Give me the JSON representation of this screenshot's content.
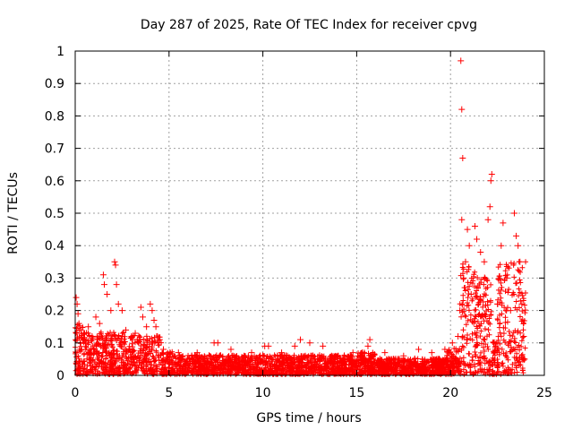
{
  "chart_data": {
    "type": "scatter",
    "title": "Day 287 of 2025, Rate Of TEC Index for receiver cpvg",
    "xlabel": "GPS time / hours",
    "ylabel": "ROTI / TECUs",
    "xlim": [
      0,
      25
    ],
    "ylim": [
      0,
      1
    ],
    "x_ticks": [
      "0",
      "5",
      "10",
      "15",
      "20",
      "25"
    ],
    "y_ticks": [
      "0",
      "0.1",
      "0.2",
      "0.3",
      "0.4",
      "0.5",
      "0.6",
      "0.7",
      "0.8",
      "0.9",
      "1"
    ],
    "grid": true,
    "marker": "plus",
    "color": "#ff0000",
    "series": [
      {
        "name": "ROTI",
        "points": [
          [
            0.05,
            0.24
          ],
          [
            0.1,
            0.22
          ],
          [
            0.15,
            0.19
          ],
          [
            0.2,
            0.16
          ],
          [
            0.3,
            0.14
          ],
          [
            0.5,
            0.13
          ],
          [
            0.7,
            0.15
          ],
          [
            0.9,
            0.12
          ],
          [
            1.1,
            0.18
          ],
          [
            1.3,
            0.16
          ],
          [
            1.5,
            0.31
          ],
          [
            1.55,
            0.28
          ],
          [
            1.7,
            0.25
          ],
          [
            1.9,
            0.2
          ],
          [
            2.1,
            0.35
          ],
          [
            2.15,
            0.34
          ],
          [
            2.2,
            0.28
          ],
          [
            2.3,
            0.22
          ],
          [
            2.5,
            0.2
          ],
          [
            2.7,
            0.14
          ],
          [
            3.0,
            0.12
          ],
          [
            3.2,
            0.13
          ],
          [
            3.5,
            0.21
          ],
          [
            3.6,
            0.18
          ],
          [
            3.8,
            0.15
          ],
          [
            4.0,
            0.22
          ],
          [
            4.1,
            0.2
          ],
          [
            4.2,
            0.17
          ],
          [
            4.3,
            0.15
          ],
          [
            4.5,
            0.11
          ],
          [
            4.7,
            0.08
          ],
          [
            5.5,
            0.07
          ],
          [
            6.5,
            0.07
          ],
          [
            7.4,
            0.1
          ],
          [
            7.6,
            0.1
          ],
          [
            8.3,
            0.08
          ],
          [
            9.0,
            0.06
          ],
          [
            9.4,
            0.07
          ],
          [
            10.1,
            0.09
          ],
          [
            10.3,
            0.09
          ],
          [
            11.0,
            0.07
          ],
          [
            11.7,
            0.09
          ],
          [
            12.0,
            0.11
          ],
          [
            12.5,
            0.1
          ],
          [
            13.2,
            0.09
          ],
          [
            14.0,
            0.06
          ],
          [
            14.8,
            0.07
          ],
          [
            15.6,
            0.09
          ],
          [
            15.7,
            0.11
          ],
          [
            16.5,
            0.07
          ],
          [
            17.5,
            0.06
          ],
          [
            18.3,
            0.08
          ],
          [
            19.0,
            0.07
          ],
          [
            19.7,
            0.08
          ],
          [
            20.1,
            0.1
          ],
          [
            20.4,
            0.12
          ],
          [
            20.5,
            0.2
          ],
          [
            20.55,
            0.97
          ],
          [
            20.6,
            0.82
          ],
          [
            20.65,
            0.67
          ],
          [
            20.6,
            0.48
          ],
          [
            20.7,
            0.3
          ],
          [
            20.8,
            0.35
          ],
          [
            20.9,
            0.45
          ],
          [
            21.0,
            0.4
          ],
          [
            21.1,
            0.25
          ],
          [
            21.3,
            0.46
          ],
          [
            21.4,
            0.42
          ],
          [
            21.6,
            0.38
          ],
          [
            21.8,
            0.35
          ],
          [
            22.0,
            0.48
          ],
          [
            22.1,
            0.52
          ],
          [
            22.2,
            0.62
          ],
          [
            22.15,
            0.6
          ],
          [
            22.3,
            0.1
          ],
          [
            22.5,
            0.22
          ],
          [
            22.7,
            0.4
          ],
          [
            22.8,
            0.47
          ],
          [
            23.0,
            0.3
          ],
          [
            23.2,
            0.2
          ],
          [
            23.4,
            0.5
          ],
          [
            23.5,
            0.43
          ],
          [
            23.6,
            0.4
          ],
          [
            23.7,
            0.35
          ],
          [
            23.8,
            0.22
          ],
          [
            23.9,
            0.12
          ],
          [
            23.95,
            0.05
          ]
        ]
      }
    ]
  }
}
